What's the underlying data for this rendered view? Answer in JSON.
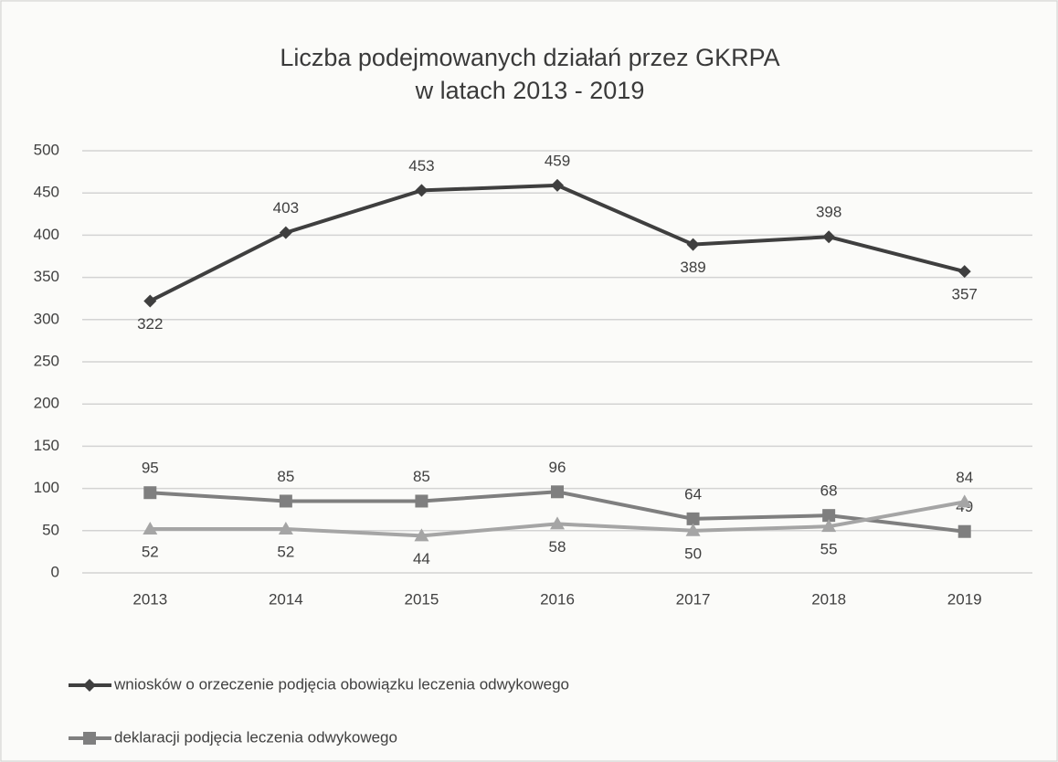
{
  "chart_data": {
    "type": "line",
    "title": [
      "Liczba podejmowanych działań przez GKRPA",
      "w latach 2013 - 2019"
    ],
    "categories": [
      "2013",
      "2014",
      "2015",
      "2016",
      "2017",
      "2018",
      "2019"
    ],
    "series": [
      {
        "name": "wniosków o orzeczenie podjęcia obowiązku leczenia odwykowego",
        "color": "#3f3f3f",
        "marker": "diamond",
        "values": [
          322,
          403,
          453,
          459,
          389,
          398,
          357
        ]
      },
      {
        "name": "deklaracji podjęcia leczenia odwykowego",
        "color": "#7f7f7f",
        "marker": "square",
        "values": [
          95,
          85,
          85,
          96,
          64,
          68,
          49
        ]
      },
      {
        "color": "#a5a5a5",
        "marker": "triangle",
        "values": [
          52,
          52,
          44,
          58,
          50,
          55,
          84
        ]
      }
    ],
    "ylim": [
      0,
      500
    ],
    "yticks": [
      0,
      50,
      100,
      150,
      200,
      250,
      300,
      350,
      400,
      450,
      500
    ],
    "grid": true
  }
}
